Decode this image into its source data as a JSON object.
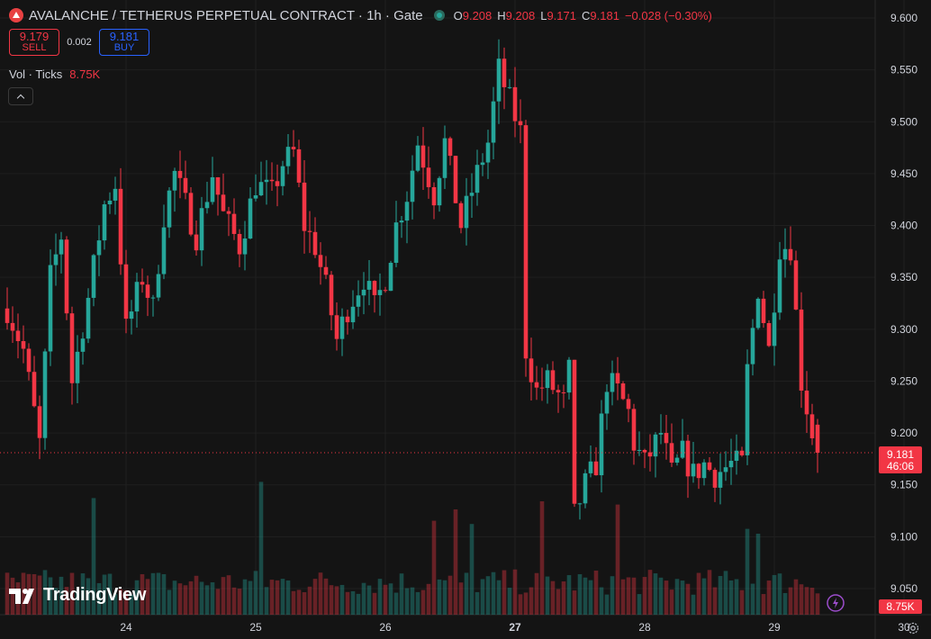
{
  "header": {
    "symbol_title": "AVALANCHE / TETHERUS PERPETUAL CONTRACT · 1h · Gate",
    "ohlc": [
      {
        "key": "O",
        "value": "9.208"
      },
      {
        "key": "H",
        "value": "9.208"
      },
      {
        "key": "L",
        "value": "9.171"
      },
      {
        "key": "C",
        "value": "9.181"
      }
    ],
    "change": "−0.028 (−0.30%)"
  },
  "trade": {
    "sell_price": "9.179",
    "sell_label": "SELL",
    "spread": "0.002",
    "buy_price": "9.181",
    "buy_label": "BUY"
  },
  "volume_indicator": {
    "label": "Vol · Ticks",
    "value": "8.75K"
  },
  "branding": "TradingView",
  "colors": {
    "up": "#26a69a",
    "down": "#f23645",
    "background": "#141414",
    "axis_text": "#d1d4dc"
  },
  "icons": {
    "symbol": "avalanche-logo-icon",
    "status": "market-status-icon",
    "collapse": "chevron-up-icon",
    "settings": "gear-icon",
    "flash": "lightning-icon"
  },
  "chart_data": {
    "type": "candlestick",
    "timeframe": "1h",
    "price_axis": {
      "ticks": [
        "9.600",
        "9.550",
        "9.500",
        "9.450",
        "9.400",
        "9.350",
        "9.300",
        "9.250",
        "9.200",
        "9.150",
        "9.100",
        "9.050"
      ],
      "range": [
        9.0,
        9.61
      ]
    },
    "time_axis": {
      "ticks": [
        {
          "label": "24",
          "hour": 22
        },
        {
          "label": "25",
          "hour": 46
        },
        {
          "label": "26",
          "hour": 70
        },
        {
          "label": "27",
          "hour": 94
        },
        {
          "label": "28",
          "hour": 118
        },
        {
          "label": "29",
          "hour": 142
        },
        {
          "label": "30",
          "hour": 166
        }
      ]
    },
    "last_price": {
      "value": 9.181,
      "label": "9.181",
      "countdown": "46:06"
    },
    "volume_last": "8.75K",
    "volume_range": [
      0,
      1000
    ],
    "key_points": [
      [
        0,
        9.32
      ],
      [
        3,
        9.28
      ],
      [
        6,
        9.19
      ],
      [
        8,
        9.35
      ],
      [
        10,
        9.39
      ],
      [
        12,
        9.25
      ],
      [
        15,
        9.33
      ],
      [
        18,
        9.42
      ],
      [
        20,
        9.44
      ],
      [
        22,
        9.3
      ],
      [
        25,
        9.35
      ],
      [
        27,
        9.32
      ],
      [
        29,
        9.41
      ],
      [
        31,
        9.45
      ],
      [
        33,
        9.42
      ],
      [
        35,
        9.39
      ],
      [
        38,
        9.45
      ],
      [
        40,
        9.41
      ],
      [
        43,
        9.38
      ],
      [
        46,
        9.44
      ],
      [
        49,
        9.43
      ],
      [
        51,
        9.46
      ],
      [
        53,
        9.47
      ],
      [
        55,
        9.4
      ],
      [
        57,
        9.38
      ],
      [
        59,
        9.34
      ],
      [
        61,
        9.29
      ],
      [
        63,
        9.32
      ],
      [
        66,
        9.35
      ],
      [
        68,
        9.32
      ],
      [
        70,
        9.35
      ],
      [
        72,
        9.4
      ],
      [
        74,
        9.43
      ],
      [
        76,
        9.48
      ],
      [
        79,
        9.43
      ],
      [
        81,
        9.48
      ],
      [
        84,
        9.4
      ],
      [
        87,
        9.45
      ],
      [
        89,
        9.48
      ],
      [
        91,
        9.55
      ],
      [
        93,
        9.52
      ],
      [
        95,
        9.49
      ],
      [
        96,
        9.28
      ],
      [
        98,
        9.24
      ],
      [
        100,
        9.25
      ],
      [
        103,
        9.23
      ],
      [
        104,
        9.26
      ],
      [
        105,
        9.12
      ],
      [
        107,
        9.15
      ],
      [
        109,
        9.17
      ],
      [
        111,
        9.25
      ],
      [
        113,
        9.24
      ],
      [
        115,
        9.22
      ],
      [
        116,
        9.19
      ],
      [
        118,
        9.17
      ],
      [
        121,
        9.2
      ],
      [
        123,
        9.16
      ],
      [
        125,
        9.18
      ],
      [
        127,
        9.16
      ],
      [
        129,
        9.17
      ],
      [
        131,
        9.16
      ],
      [
        134,
        9.17
      ],
      [
        136,
        9.17
      ],
      [
        137,
        9.26
      ],
      [
        139,
        9.34
      ],
      [
        141,
        9.28
      ],
      [
        143,
        9.38
      ],
      [
        145,
        9.38
      ],
      [
        147,
        9.25
      ],
      [
        149,
        9.2
      ],
      [
        150,
        9.181
      ]
    ],
    "volume_spikes": {
      "16": 720,
      "47": 820,
      "79": 580,
      "83": 650,
      "86": 560,
      "99": 700,
      "113": 680,
      "137": 530,
      "139": 500
    }
  }
}
